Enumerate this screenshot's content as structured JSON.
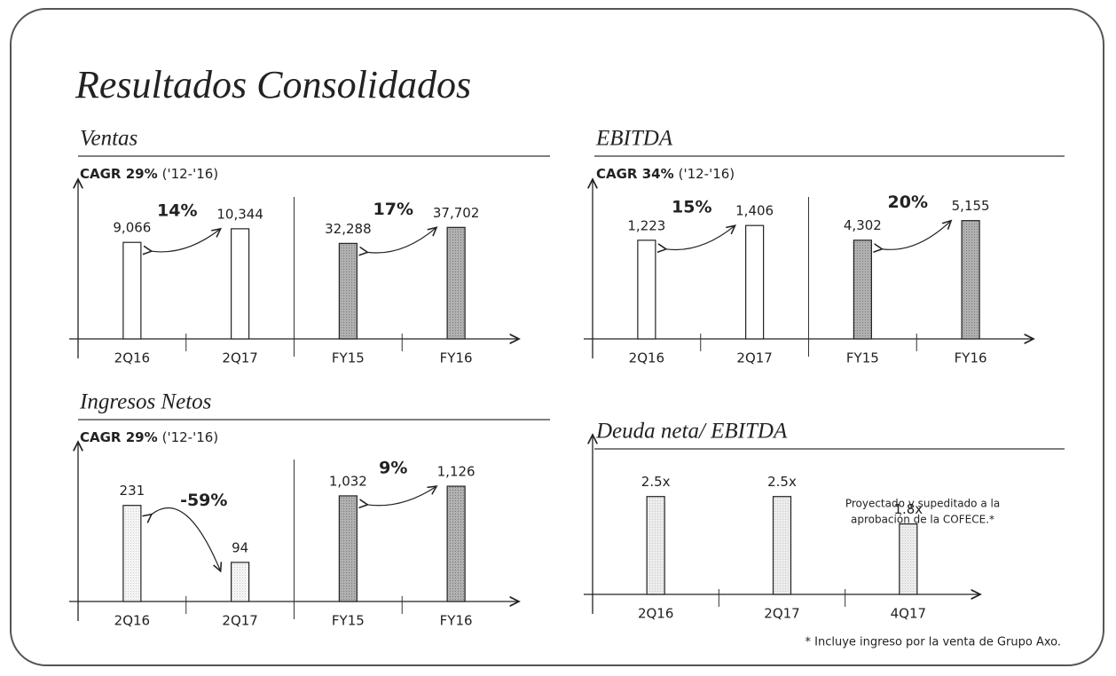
{
  "title": "Resultados Consolidados",
  "chart_data": [
    {
      "type": "bar",
      "title": "Ventas",
      "cagr": "CAGR 29%",
      "period": "('12-'16)",
      "panels": [
        {
          "categories": [
            "2Q16",
            "2Q17"
          ],
          "values": [
            9066,
            10344
          ],
          "value_labels": [
            "9,066",
            "10,344"
          ],
          "color": "#ffffff",
          "ylim": [
            0,
            12500
          ],
          "annotation": "14%"
        },
        {
          "categories": [
            "FY15",
            "FY16"
          ],
          "values": [
            32288,
            37702
          ],
          "value_labels": [
            "32,288",
            "37,702"
          ],
          "color": "#b0b0b0",
          "ylim": [
            0,
            45000
          ],
          "annotation": "17%"
        }
      ]
    },
    {
      "type": "bar",
      "title": "EBITDA",
      "cagr": "CAGR 34%",
      "period": "('12-'16)",
      "panels": [
        {
          "categories": [
            "2Q16",
            "2Q17"
          ],
          "values": [
            1223,
            1406
          ],
          "value_labels": [
            "1,223",
            "1,406"
          ],
          "color": "#ffffff",
          "ylim": [
            0,
            1650
          ],
          "annotation": "15%"
        },
        {
          "categories": [
            "FY15",
            "FY16"
          ],
          "values": [
            4302,
            5155
          ],
          "value_labels": [
            "4,302",
            "5,155"
          ],
          "color": "#b0b0b0",
          "ylim": [
            0,
            5800
          ],
          "annotation": "20%"
        }
      ]
    },
    {
      "type": "bar",
      "title": "Ingresos Netos",
      "cagr": "CAGR 29%",
      "period": "('12-'16)",
      "panels": [
        {
          "categories": [
            "2Q16",
            "2Q17"
          ],
          "values": [
            231,
            94
          ],
          "color": "#f4f4f4",
          "ylim": [
            0,
            320
          ],
          "annotation": "-59%"
        },
        {
          "categories": [
            "FY15",
            "FY16"
          ],
          "values": [
            1032,
            1126
          ],
          "value_labels": [
            "1,032",
            "1,126"
          ],
          "color": "#b0b0b0",
          "ylim": [
            0,
            1300
          ],
          "annotation": "9%"
        }
      ]
    },
    {
      "type": "bar",
      "title": "Deuda neta/ EBITDA",
      "panels": [
        {
          "categories": [
            "2Q16",
            "2Q17",
            "4Q17"
          ],
          "values": [
            2.5,
            2.5,
            1.8
          ],
          "value_labels": [
            "2.5x",
            "2.5x",
            "1.8x"
          ],
          "color": "#ececec",
          "ylim": [
            0,
            3.4
          ]
        }
      ],
      "note": [
        "Proyectado y supeditado a la",
        "aprobación de la COFECE.*"
      ],
      "footnote": "* Incluye ingreso por la venta de Grupo Axo."
    }
  ]
}
